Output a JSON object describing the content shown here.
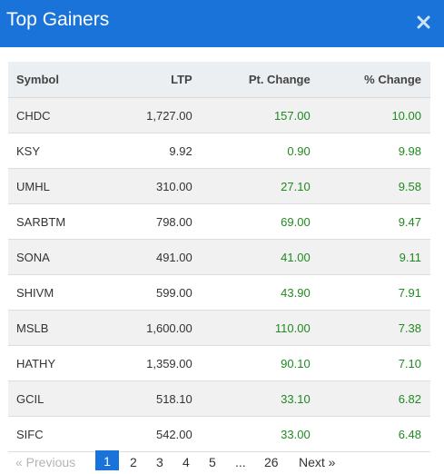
{
  "header": {
    "title": "Top Gainers",
    "bg_color": "#1a73d9",
    "close_icon": "close-icon"
  },
  "table": {
    "columns": [
      "Symbol",
      "LTP",
      "Pt. Change",
      "% Change"
    ],
    "rows": [
      [
        "CHDC",
        "1,727.00",
        "157.00",
        "10.00"
      ],
      [
        "KSY",
        "9.92",
        "0.90",
        "9.98"
      ],
      [
        "UMHL",
        "310.00",
        "27.10",
        "9.58"
      ],
      [
        "SARBTM",
        "798.00",
        "69.00",
        "9.47"
      ],
      [
        "SONA",
        "491.00",
        "41.00",
        "9.11"
      ],
      [
        "SHIVM",
        "599.00",
        "43.90",
        "7.91"
      ],
      [
        "MSLB",
        "1,600.00",
        "110.00",
        "7.38"
      ],
      [
        "HATHY",
        "1,359.00",
        "90.10",
        "7.10"
      ],
      [
        "GCIL",
        "518.10",
        "33.10",
        "6.82"
      ],
      [
        "SIFC",
        "542.00",
        "33.00",
        "6.48"
      ]
    ],
    "gain_color": "#1f8a1f"
  },
  "pagination": {
    "prev_label": "« Previous",
    "pages": [
      "1",
      "2",
      "3",
      "4",
      "5",
      "...",
      "26"
    ],
    "active_page": "1",
    "next_label": "Next »"
  }
}
